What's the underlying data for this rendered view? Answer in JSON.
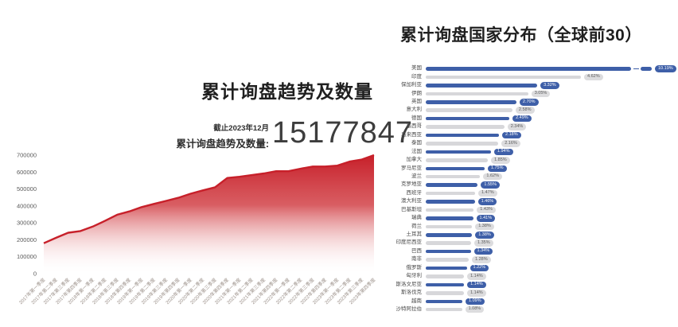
{
  "left": {
    "title": "累计询盘趋势及数量",
    "asof": "截止2023年12月",
    "total_label": "累计询盘趋势及数量:",
    "total_value": "15177847"
  },
  "right": {
    "title": "累计询盘国家分布（全球前30）"
  },
  "colors": {
    "area_red": "#c7202a",
    "area_red_mid": "#d03a40",
    "bar_blue": "#3e5fa8",
    "bar_gray": "#d7d7da",
    "axis_text": "#9b9089",
    "ytick_text": "#5a5a5a"
  },
  "chart_data": [
    {
      "type": "area",
      "title": "累计询盘趋势及数量",
      "xlabel": "",
      "ylabel": "",
      "ylim": [
        0,
        700000
      ],
      "yticks": [
        0,
        100000,
        200000,
        300000,
        400000,
        500000,
        600000,
        700000
      ],
      "grid": false,
      "categories": [
        "2017年第一季度",
        "2017年第二季度",
        "2017年第三季度",
        "2017年第四季度",
        "2018年第一季度",
        "2018年第二季度",
        "2018年第三季度",
        "2018年第四季度",
        "2019年第一季度",
        "2019年第二季度",
        "2019年第三季度",
        "2019年第四季度",
        "2020年第一季度",
        "2020年第二季度",
        "2020年第三季度",
        "2020年第四季度",
        "2021年第一季度",
        "2021年第二季度",
        "2021年第三季度",
        "2021年第四季度",
        "2022年第一季度",
        "2022年第二季度",
        "2022年第三季度",
        "2022年第四季度",
        "2023年第一季度",
        "2023年第二季度",
        "2023年第三季度",
        "2023年第四季度"
      ],
      "values": [
        180000,
        212000,
        242000,
        252000,
        278000,
        312000,
        348000,
        368000,
        393000,
        412000,
        430000,
        448000,
        472000,
        492000,
        510000,
        565000,
        572000,
        582000,
        592000,
        605000,
        605000,
        620000,
        633000,
        633000,
        638000,
        662000,
        674000,
        700000
      ]
    },
    {
      "type": "bar",
      "orientation": "horizontal",
      "title": "累计询盘国家分布（全球前30）",
      "unit": "%",
      "legend": null,
      "axis_break_on_first_bar": true,
      "bar_color_pattern": "alternating blue/gray",
      "categories": [
        "美国",
        "印度",
        "保加利亚",
        "伊朗",
        "英国",
        "意大利",
        "德国",
        "墨西哥",
        "马来西亚",
        "泰国",
        "法国",
        "加拿大",
        "罗马尼亚",
        "波兰",
        "克罗地亚",
        "西班牙",
        "澳大利亚",
        "巴基斯坦",
        "瑞典",
        "荷兰",
        "土耳其",
        "印度尼西亚",
        "巴西",
        "南非",
        "俄罗斯",
        "匈牙利",
        "斯洛文尼亚",
        "斯洛伐克",
        "越南",
        "沙特阿拉伯"
      ],
      "values": [
        10.19,
        4.62,
        3.32,
        3.05,
        2.7,
        2.58,
        2.49,
        2.34,
        2.18,
        2.16,
        1.94,
        1.85,
        1.75,
        1.62,
        1.55,
        1.47,
        1.46,
        1.43,
        1.41,
        1.38,
        1.38,
        1.35,
        1.34,
        1.28,
        1.22,
        1.14,
        1.14,
        1.14,
        1.09,
        1.08
      ],
      "labels": [
        "10.19%",
        "4.62%",
        "3.32%",
        "3.05%",
        "2.70%",
        "2.58%",
        "2.49%",
        "2.34%",
        "2.18%",
        "2.16%",
        "1.94%",
        "1.85%",
        "1.75%",
        "1.62%",
        "1.55%",
        "1.47%",
        "1.46%",
        "1.43%",
        "1.41%",
        "1.38%",
        "1.38%",
        "1.35%",
        "1.34%",
        "1.28%",
        "1.22%",
        "1.14%",
        "1.14%",
        "1.14%",
        "1.09%",
        "1.08%"
      ]
    }
  ]
}
